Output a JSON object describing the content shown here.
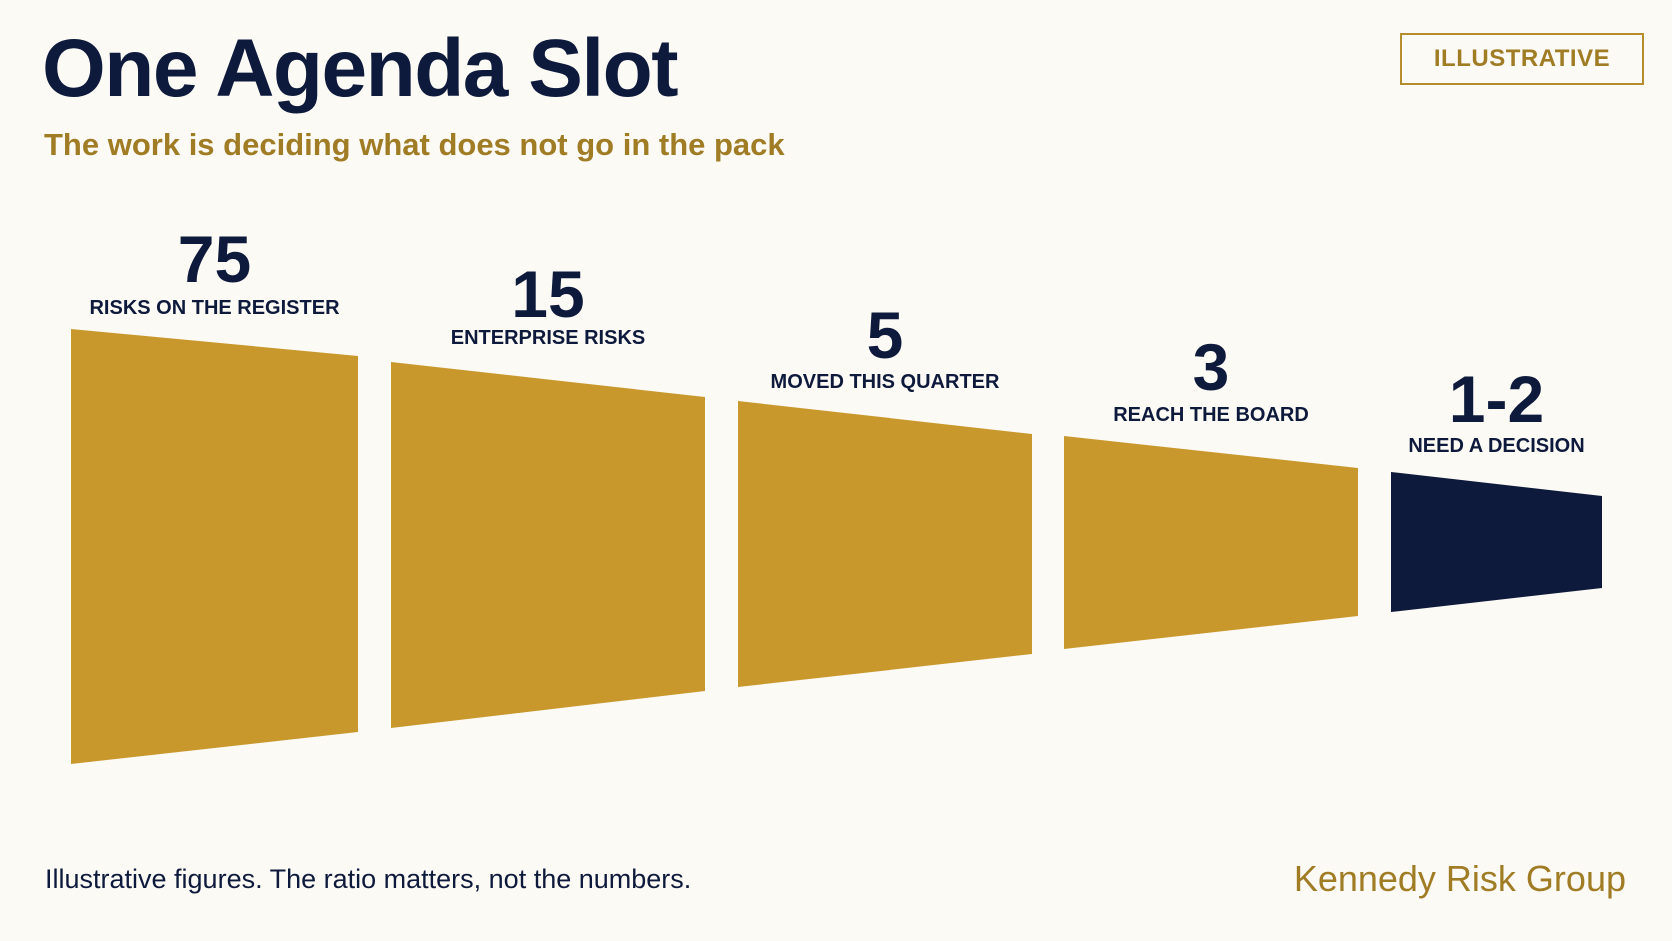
{
  "header": {
    "title": "One Agenda Slot",
    "subtitle": "The work is deciding what does not go in the pack",
    "badge": "ILLUSTRATIVE"
  },
  "chart_data": {
    "type": "funnel",
    "stages": [
      {
        "value_label": "75",
        "label": "RISKS ON THE REGISTER",
        "color": "#c9982c"
      },
      {
        "value_label": "15",
        "label": "ENTERPRISE RISKS",
        "color": "#c9982c"
      },
      {
        "value_label": "5",
        "label": "MOVED THIS QUARTER",
        "color": "#c9982c"
      },
      {
        "value_label": "3",
        "label": "REACH THE BOARD",
        "color": "#c9982c"
      },
      {
        "value_label": "1-2",
        "label": "NEED A DECISION",
        "color": "#0e1a3c"
      }
    ]
  },
  "footer": {
    "note": "Illustrative figures. The ratio matters, not the numbers.",
    "brand": "Kennedy Risk Group"
  },
  "colors": {
    "navy": "#0e1a3c",
    "gold": "#c9982c",
    "gold_text": "#a07c25",
    "background": "#fcfaf5"
  }
}
